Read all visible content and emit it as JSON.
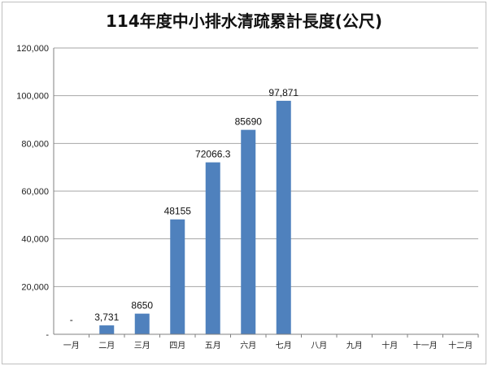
{
  "chart_data": {
    "type": "bar",
    "title": "114年度中小排水清疏累計長度(公尺)",
    "xlabel": "",
    "ylabel": "",
    "categories": [
      "一月",
      "二月",
      "三月",
      "四月",
      "五月",
      "六月",
      "七月",
      "八月",
      "九月",
      "十月",
      "十一月",
      "十二月"
    ],
    "values": [
      0,
      3731,
      8650,
      48155,
      72066.3,
      85690,
      97871,
      null,
      null,
      null,
      null,
      null
    ],
    "data_labels": [
      "-",
      "3,731",
      "8650",
      "48155",
      "72066.3",
      "85690",
      "97,871",
      "",
      "",
      "",
      "",
      ""
    ],
    "ylim": [
      0,
      120000
    ],
    "yticks": [
      0,
      20000,
      40000,
      60000,
      80000,
      100000,
      120000
    ],
    "ytick_labels": [
      "-",
      "20,000",
      "40,000",
      "60,000",
      "80,000",
      "100,000",
      "120,000"
    ],
    "grid": "horizontal",
    "legend": "none",
    "bar_color": "#4f81bd",
    "grid_color": "#a6a6a6"
  }
}
